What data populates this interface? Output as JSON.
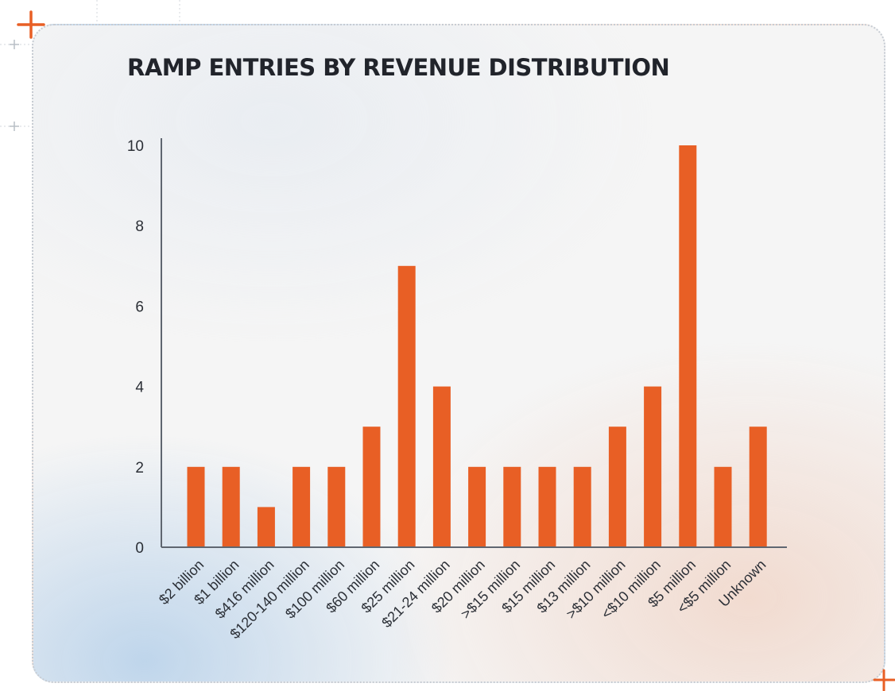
{
  "page": {
    "title": "RAMP ENTRIES BY REVENUE DISTRIBUTION"
  },
  "colors": {
    "bar": "#e85f25",
    "axis": "#5f6670",
    "text": "#2b2f36",
    "title": "#21242b",
    "accent": "#e85f25",
    "deco": "#b9bfc6"
  },
  "chart_data": {
    "type": "bar",
    "title": "RAMP ENTRIES BY REVENUE DISTRIBUTION",
    "xlabel": "",
    "ylabel": "",
    "ylim": [
      0,
      10
    ],
    "yticks": [
      0,
      2,
      4,
      6,
      8,
      10
    ],
    "grid": false,
    "categories": [
      "$2 billion",
      "$1 billion",
      "$416 million",
      "$120-140 million",
      "$100 million",
      "$60 million",
      "$25 million",
      "$21-24 million",
      "$20 million",
      ">$15 million",
      "$15 million",
      "$13 million",
      ">$10 million",
      "<$10 million",
      "$5 million",
      "<$5 million",
      "Unknown"
    ],
    "values": [
      2,
      2,
      1,
      2,
      2,
      3,
      7,
      4,
      2,
      2,
      2,
      2,
      3,
      4,
      10,
      2,
      3
    ]
  }
}
